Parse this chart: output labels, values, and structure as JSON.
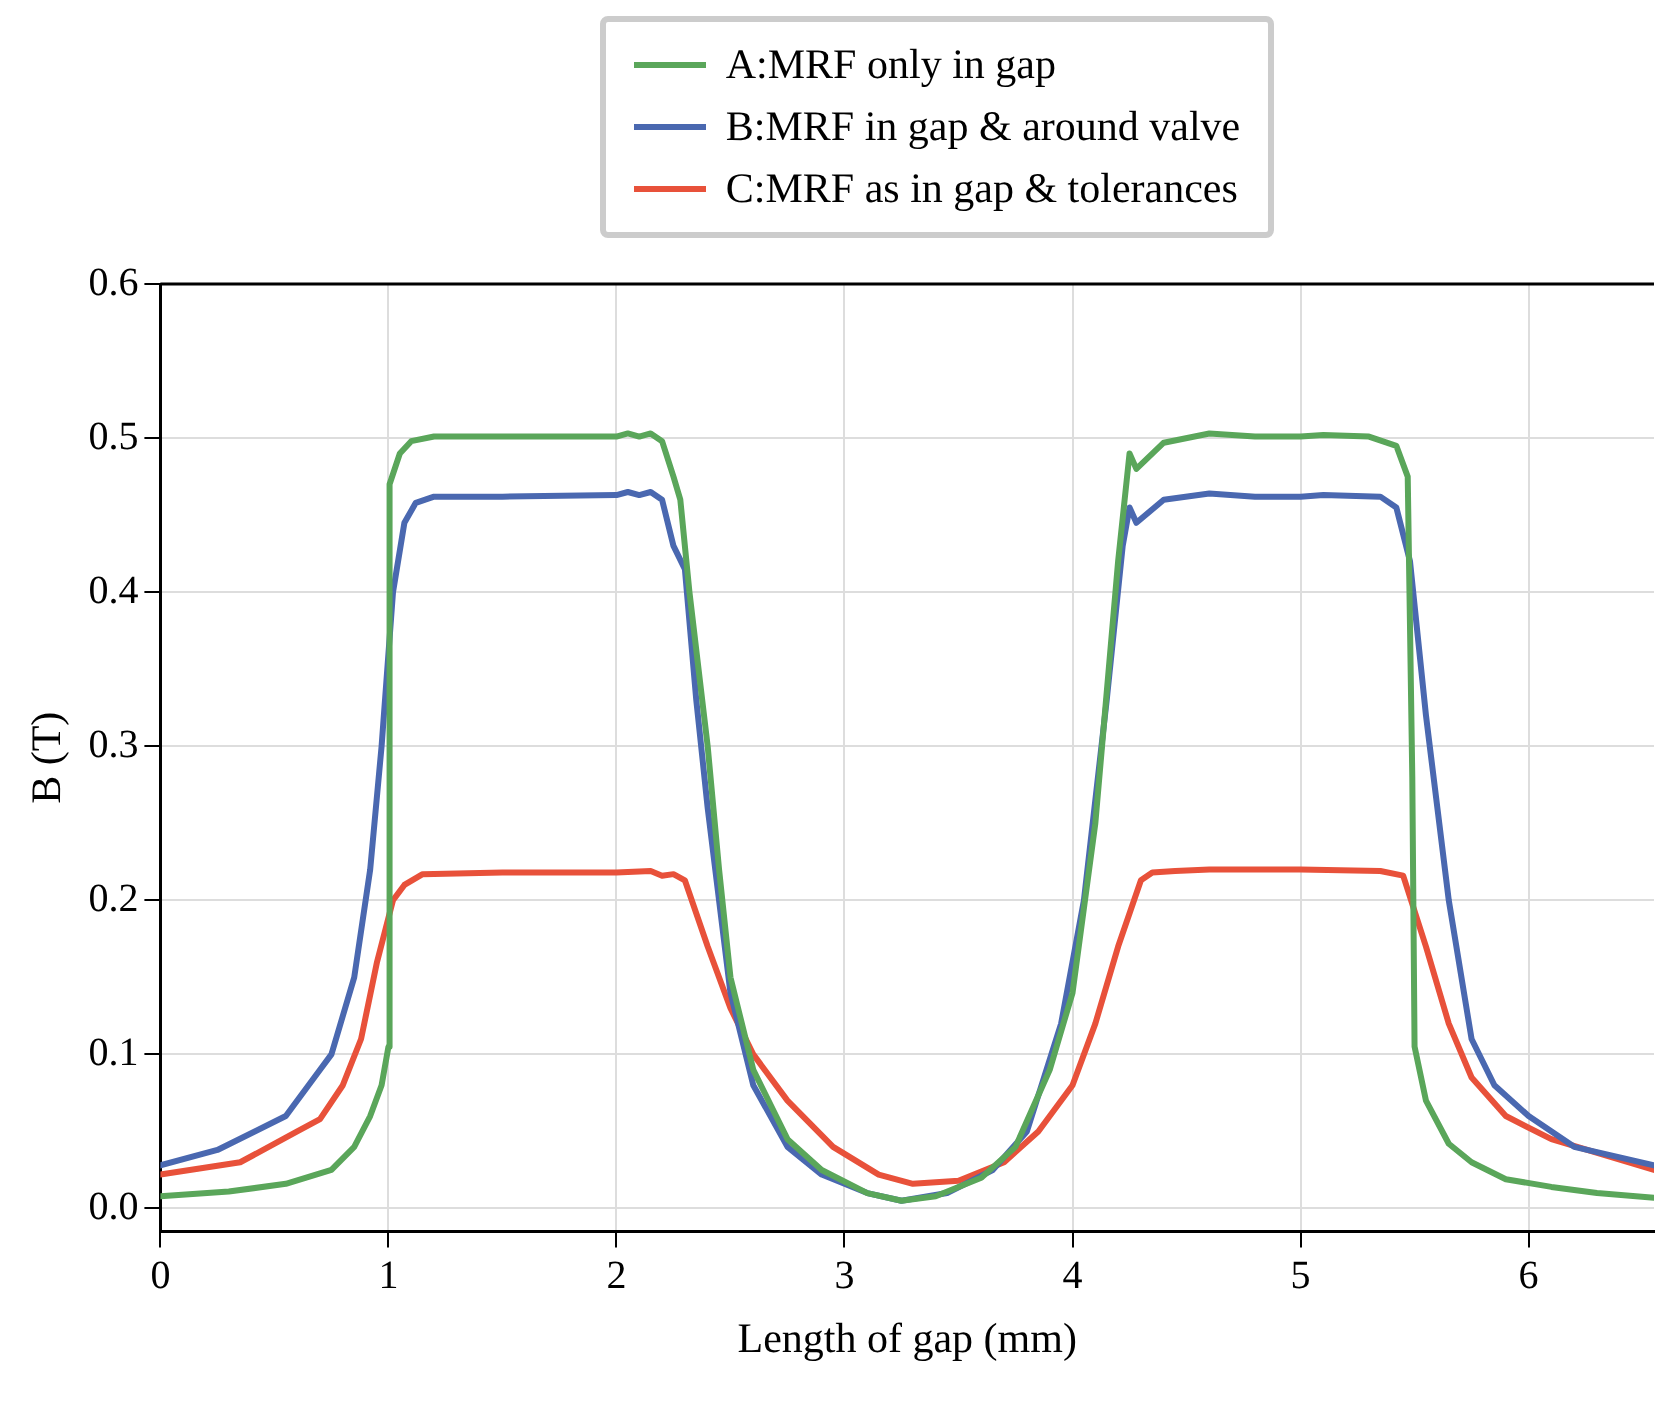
{
  "chart_data": {
    "type": "line",
    "xlabel": "Length of gap (mm)",
    "ylabel": "B (T)",
    "xlim": [
      0,
      6.55
    ],
    "xticks": [
      0,
      1,
      2,
      3,
      4,
      5,
      6
    ],
    "ylim": [
      -0.015,
      0.6
    ],
    "yticks": [
      {
        "value": 0,
        "label": "0.0"
      },
      0.1,
      0.2,
      0.3,
      0.4,
      0.5,
      0.6
    ],
    "grid": true,
    "legend": "top",
    "marker": "none",
    "line_style": "solid",
    "series": [
      {
        "name": "A:MRF only in gap",
        "color": "#5aa65a",
        "x": [
          0,
          0.3,
          0.55,
          0.75,
          0.85,
          0.92,
          0.97,
          1.0,
          1.005,
          1.05,
          1.1,
          1.2,
          1.5,
          2.0,
          2.05,
          2.1,
          2.15,
          2.2,
          2.25,
          2.28,
          2.32,
          2.4,
          2.45,
          2.5,
          2.6,
          2.75,
          2.9,
          3.1,
          3.25,
          3.4,
          3.6,
          3.75,
          3.9,
          4.0,
          4.1,
          4.2,
          4.25,
          4.28,
          4.4,
          4.6,
          4.8,
          5.0,
          5.1,
          5.3,
          5.42,
          5.47,
          5.49,
          5.5,
          5.55,
          5.65,
          5.75,
          5.9,
          6.1,
          6.3,
          6.55
        ],
        "values": [
          0.008,
          0.011,
          0.016,
          0.025,
          0.04,
          0.06,
          0.08,
          0.105,
          0.47,
          0.49,
          0.498,
          0.501,
          0.501,
          0.501,
          0.503,
          0.501,
          0.503,
          0.498,
          0.475,
          0.46,
          0.4,
          0.3,
          0.22,
          0.15,
          0.09,
          0.045,
          0.025,
          0.01,
          0.005,
          0.008,
          0.02,
          0.04,
          0.09,
          0.14,
          0.25,
          0.42,
          0.49,
          0.48,
          0.497,
          0.503,
          0.501,
          0.501,
          0.502,
          0.501,
          0.495,
          0.475,
          0.28,
          0.105,
          0.07,
          0.042,
          0.03,
          0.019,
          0.014,
          0.01,
          0.007
        ]
      },
      {
        "name": "B:MRF in gap & around valve",
        "color": "#4a68b0",
        "x": [
          0,
          0.25,
          0.55,
          0.7,
          0.75,
          0.85,
          0.92,
          0.97,
          1.02,
          1.07,
          1.12,
          1.2,
          1.5,
          2.0,
          2.05,
          2.1,
          2.15,
          2.2,
          2.25,
          2.3,
          2.35,
          2.4,
          2.5,
          2.6,
          2.75,
          2.9,
          3.1,
          3.25,
          3.45,
          3.65,
          3.8,
          3.95,
          4.05,
          4.15,
          4.22,
          4.25,
          4.28,
          4.4,
          4.6,
          4.8,
          5.0,
          5.1,
          5.35,
          5.42,
          5.48,
          5.55,
          5.65,
          5.75,
          5.85,
          6.0,
          6.2,
          6.55
        ],
        "values": [
          0.028,
          0.038,
          0.06,
          0.09,
          0.1,
          0.15,
          0.22,
          0.3,
          0.4,
          0.445,
          0.458,
          0.462,
          0.462,
          0.463,
          0.465,
          0.463,
          0.465,
          0.46,
          0.43,
          0.415,
          0.33,
          0.26,
          0.14,
          0.08,
          0.04,
          0.022,
          0.01,
          0.005,
          0.01,
          0.025,
          0.05,
          0.12,
          0.2,
          0.33,
          0.43,
          0.455,
          0.445,
          0.46,
          0.464,
          0.462,
          0.462,
          0.463,
          0.462,
          0.455,
          0.42,
          0.32,
          0.2,
          0.11,
          0.08,
          0.06,
          0.04,
          0.028
        ]
      },
      {
        "name": "C:MRF as in gap & tolerances",
        "color": "#e8513a",
        "x": [
          0,
          0.35,
          0.6,
          0.7,
          0.8,
          0.88,
          0.95,
          1.02,
          1.07,
          1.15,
          1.5,
          2.0,
          2.15,
          2.2,
          2.25,
          2.3,
          2.4,
          2.5,
          2.6,
          2.75,
          2.95,
          3.15,
          3.3,
          3.5,
          3.7,
          3.85,
          4.0,
          4.1,
          4.2,
          4.3,
          4.35,
          4.45,
          4.6,
          5.0,
          5.35,
          5.45,
          5.55,
          5.65,
          5.75,
          5.9,
          6.1,
          6.55
        ],
        "values": [
          0.022,
          0.03,
          0.05,
          0.058,
          0.08,
          0.11,
          0.16,
          0.2,
          0.21,
          0.217,
          0.218,
          0.218,
          0.219,
          0.216,
          0.217,
          0.213,
          0.17,
          0.13,
          0.1,
          0.07,
          0.04,
          0.022,
          0.016,
          0.018,
          0.03,
          0.05,
          0.08,
          0.12,
          0.17,
          0.213,
          0.218,
          0.219,
          0.22,
          0.22,
          0.219,
          0.216,
          0.17,
          0.12,
          0.085,
          0.06,
          0.045,
          0.025
        ]
      }
    ]
  }
}
